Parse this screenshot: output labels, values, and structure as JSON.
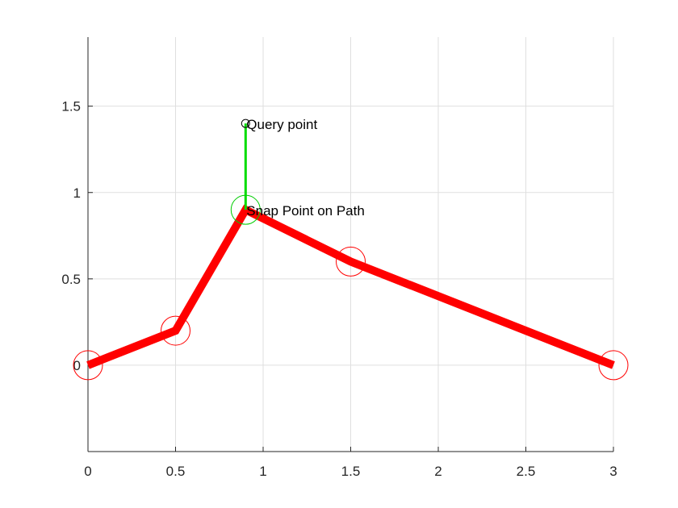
{
  "chart_data": {
    "type": "line",
    "title": "",
    "xlabel": "",
    "ylabel": "",
    "xlim": [
      0,
      3
    ],
    "ylim": [
      -0.5,
      1.9
    ],
    "grid": true,
    "x_ticks": [
      0,
      0.5,
      1,
      1.5,
      2,
      2.5,
      3
    ],
    "x_tick_labels": [
      "0",
      "0.5",
      "1",
      "1.5",
      "2",
      "2.5",
      "3"
    ],
    "y_ticks": [
      0,
      0.5,
      1,
      1.5
    ],
    "y_tick_labels": [
      "0",
      "0.5",
      "1",
      "1.5"
    ],
    "series": [
      {
        "x": [
          0,
          0.5,
          0.9,
          1.5,
          3
        ],
        "y": [
          0,
          0.2,
          0.9,
          0.6,
          0
        ],
        "color": "#ff0000",
        "marker": "circle-open"
      }
    ],
    "query_point": {
      "x": 0.9,
      "y": 1.4,
      "color": "#000000",
      "marker": "circle-open"
    },
    "snap_point": {
      "x": 0.9,
      "y": 0.9,
      "color": "#00cc00",
      "marker": "circle-open"
    },
    "snap_segment": {
      "x": [
        0.9,
        0.9
      ],
      "y": [
        1.4,
        0.9
      ],
      "color": "#00dd00"
    },
    "annotations": [
      {
        "text": "Query point",
        "x": 0.9,
        "y": 1.4
      },
      {
        "text": "Snap Point on Path",
        "x": 0.9,
        "y": 0.9
      }
    ],
    "colors": {
      "axis": "#262626",
      "grid": "#dfdfdf",
      "path": "#ff0000",
      "snap": "#00cc00"
    }
  }
}
